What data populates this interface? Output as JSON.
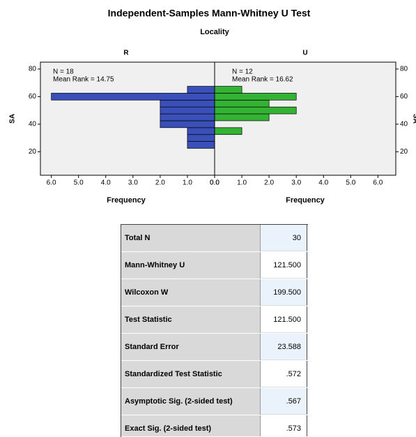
{
  "chart_data": {
    "type": "histogram",
    "title": "Independent-Samples Mann-Whitney U Test",
    "subtitle": "Locality",
    "y_label": "SA",
    "x_label": "Frequency",
    "bins": [
      22.5,
      27.5,
      32.5,
      37.5,
      42.5,
      47.5,
      52.5,
      57.5,
      62.5,
      67.5
    ],
    "series": [
      {
        "name": "R",
        "color": "#3a4fb8",
        "values": [
          1,
          1,
          1,
          2,
          2,
          2,
          2,
          6,
          1
        ],
        "annotations": [
          "N = 18",
          "Mean Rank = 14.75"
        ]
      },
      {
        "name": "U",
        "color": "#33b233",
        "values": [
          0,
          0,
          1,
          0,
          2,
          3,
          2,
          3,
          1
        ],
        "annotations": [
          "N = 12",
          "Mean Rank = 16.62"
        ]
      }
    ],
    "xlim": [
      0,
      6.4
    ],
    "xticks": [
      {
        "value": 0,
        "label": "0.0"
      },
      {
        "value": 1,
        "label": "1.0"
      },
      {
        "value": 2,
        "label": "2.0"
      },
      {
        "value": 3,
        "label": "3.0"
      },
      {
        "value": 4,
        "label": "4.0"
      },
      {
        "value": 5,
        "label": "5.0"
      },
      {
        "value": 6,
        "label": "6.0"
      }
    ],
    "ylim": [
      3,
      85
    ],
    "yticks": [
      20,
      40,
      60,
      80
    ]
  },
  "table": {
    "rows": [
      [
        "Total N",
        "30"
      ],
      [
        "Mann-Whitney U",
        "121.500"
      ],
      [
        "Wilcoxon W",
        "199.500"
      ],
      [
        "Test Statistic",
        "121.500"
      ],
      [
        "Standard Error",
        "23.588"
      ],
      [
        "Standardized Test Statistic",
        ".572"
      ],
      [
        "Asymptotic Sig. (2-sided test)",
        ".567"
      ],
      [
        "Exact Sig. (2-sided test)",
        ".573"
      ]
    ]
  }
}
